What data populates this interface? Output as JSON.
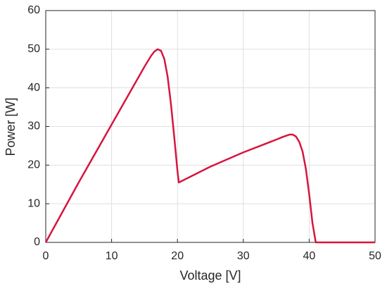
{
  "chart_data": {
    "type": "line",
    "x_label": "Voltage [V]",
    "y_label": "Power [W]",
    "x": [
      0,
      5,
      10,
      14,
      15,
      16,
      16.5,
      17,
      17.5,
      18,
      18.5,
      19,
      19.5,
      20,
      20.2,
      25,
      30,
      35,
      36,
      37,
      37.5,
      38,
      38.5,
      39,
      39.5,
      40,
      40.5,
      41,
      45,
      50
    ],
    "series": [
      {
        "color": "#d6163f",
        "values": [
          0,
          15.5,
          30.5,
          42.5,
          45.5,
          48.3,
          49.4,
          50,
          49.6,
          47.5,
          43,
          36,
          27.5,
          18.5,
          15.5,
          19.6,
          23.3,
          26.6,
          27.3,
          27.9,
          27.9,
          27.4,
          26,
          23.5,
          19,
          12.5,
          5,
          0,
          0,
          0
        ]
      }
    ],
    "xlim": [
      0,
      50
    ],
    "ylim": [
      0,
      60
    ],
    "xticks": [
      0,
      10,
      20,
      30,
      40,
      50
    ],
    "yticks": [
      0,
      10,
      20,
      30,
      40,
      50,
      60
    ],
    "grid": true
  }
}
